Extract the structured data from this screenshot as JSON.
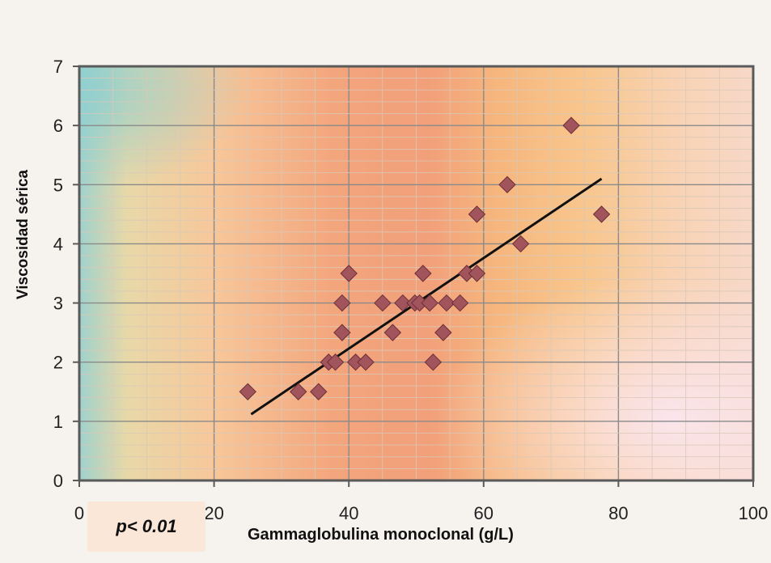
{
  "chart_data": {
    "type": "scatter",
    "title": "",
    "xlabel": "Gammaglobulina monoclonal (g/L)",
    "ylabel": "Viscosidad sérica",
    "xlim": [
      0,
      100
    ],
    "ylim": [
      0,
      7
    ],
    "x_ticks": [
      0,
      20,
      40,
      60,
      80,
      100
    ],
    "y_ticks": [
      0,
      1,
      2,
      3,
      4,
      5,
      6,
      7
    ],
    "grid": true,
    "annotation": "p< 0.01",
    "marker": "diamond",
    "marker_color": "#a2545c",
    "line_color": "#111111",
    "series": [
      {
        "points": [
          [
            25,
            1.5
          ],
          [
            32.5,
            1.5
          ],
          [
            35.5,
            1.5
          ],
          [
            37,
            2
          ],
          [
            38,
            2
          ],
          [
            41,
            2
          ],
          [
            42.5,
            2
          ],
          [
            52.5,
            2
          ],
          [
            39,
            2.5
          ],
          [
            46.5,
            2.5
          ],
          [
            54,
            2.5
          ],
          [
            39,
            3
          ],
          [
            45,
            3
          ],
          [
            48,
            3
          ],
          [
            49.8,
            3
          ],
          [
            50.5,
            3
          ],
          [
            52,
            3
          ],
          [
            54.5,
            3
          ],
          [
            56.5,
            3
          ],
          [
            40,
            3.5
          ],
          [
            51,
            3.5
          ],
          [
            57.5,
            3.5
          ],
          [
            59,
            3.5
          ],
          [
            59,
            4.5
          ],
          [
            65.5,
            4
          ],
          [
            63.5,
            5
          ],
          [
            73,
            6
          ],
          [
            77.5,
            4.5
          ]
        ]
      }
    ],
    "trendline": {
      "x": [
        25.5,
        77.5
      ],
      "y": [
        1.12,
        5.1
      ]
    }
  }
}
